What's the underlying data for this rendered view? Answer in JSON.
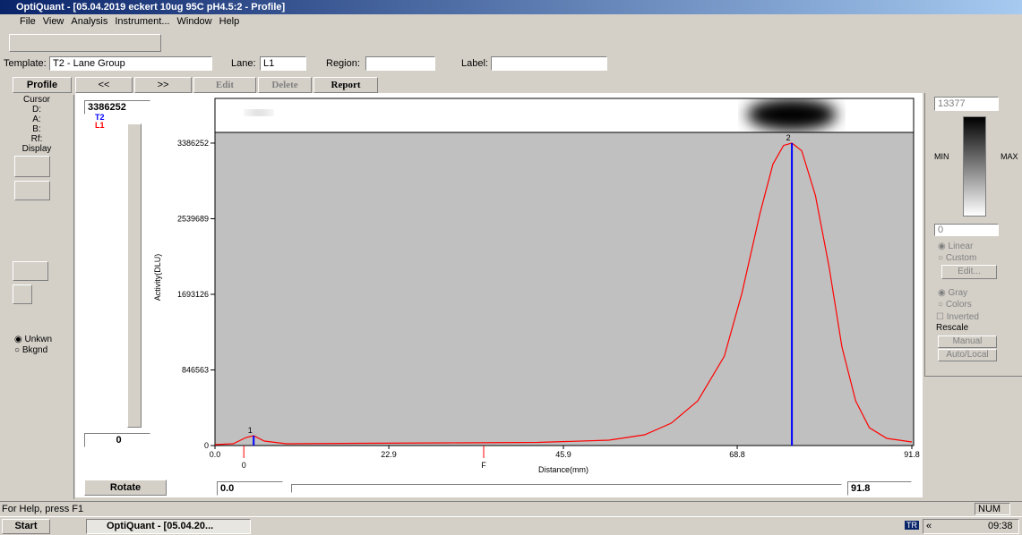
{
  "window": {
    "title": "OptiQuant - [05.04.2019 eckert 10ug 95C pH4.5:2 - Profile]"
  },
  "menu": [
    "File",
    "View",
    "Analysis",
    "Instrument...",
    "Window",
    "Help"
  ],
  "settings_bar": {
    "template_label": "Template:",
    "template_value": "T2 - Lane Group",
    "lane_label": "Lane:",
    "lane_value": "L1",
    "region_label": "Region:",
    "label_label": "Label:"
  },
  "profile_bar": [
    "Profile",
    "<<",
    ">>",
    "Edit",
    "Delete",
    "Report"
  ],
  "left_panel": {
    "cursor": "Cursor",
    "fields": [
      "D:",
      "A:",
      "B:",
      "Rf:"
    ],
    "display": "Display",
    "radios": [
      "Unkwn",
      "Bkgnd"
    ]
  },
  "intensity": {
    "max_box": "3386252",
    "min_box": "0",
    "rotate": "Rotate"
  },
  "range": {
    "start": "0.0",
    "end": "91.8"
  },
  "right_panel": {
    "max_box": "13377",
    "min_box": "0",
    "min_label": "MIN",
    "max_label": "MAX",
    "scale_options": [
      "Linear",
      "Custom"
    ],
    "edit": "Edit...",
    "color_options": [
      "Gray",
      "Colors"
    ],
    "inverted": "Inverted",
    "rescale": "Rescale",
    "manual": "Manual",
    "auto": "Auto/Local"
  },
  "status": {
    "help": "For Help, press F1",
    "num": "NUM"
  },
  "taskbar": {
    "start": "Start",
    "task": "OptiQuant - [05.04.20...",
    "lang": "TR",
    "chevron": "«",
    "time": "09:38"
  },
  "chart_data": {
    "type": "line",
    "x_label": "Distance(mm)",
    "y_label": "Activity(DLU)",
    "xlim": [
      0,
      91.8
    ],
    "xticks": [
      {
        "value": 0,
        "label": "0.0"
      },
      22.9,
      45.9,
      68.8,
      91.8
    ],
    "ylim": [
      0,
      3506000
    ],
    "yticks": [
      0,
      846563,
      1693126,
      2539689,
      3386252
    ],
    "x": [
      0,
      2.4,
      4.1,
      5.1,
      6.5,
      9.4,
      18.9,
      30.7,
      42.5,
      51.9,
      56.6,
      60.1,
      63.6,
      67.1,
      69.4,
      71.8,
      73.5,
      74.9,
      76.0,
      77.3,
      79.1,
      80.9,
      82.6,
      84.4,
      86.2,
      88.5,
      91.8
    ],
    "series": [
      {
        "name": "L1",
        "color": "#ff0000",
        "values": [
          10000,
          20000,
          90000,
          110000,
          50000,
          20000,
          25000,
          30000,
          35000,
          60000,
          120000,
          250000,
          500000,
          1000000,
          1700000,
          2600000,
          3150000,
          3360000,
          3386252,
          3300000,
          2800000,
          2000000,
          1100000,
          500000,
          200000,
          80000,
          40000
        ]
      }
    ],
    "peaks": {
      "name": "T2",
      "color": "#0000ff",
      "labels": [
        "1",
        "2"
      ],
      "x": [
        5.1,
        76.0
      ],
      "values": [
        110000,
        3386252
      ]
    },
    "markers": {
      "color": "#ff0000",
      "labels": [
        "0",
        "F"
      ],
      "x": [
        3.8,
        35.4
      ]
    }
  }
}
